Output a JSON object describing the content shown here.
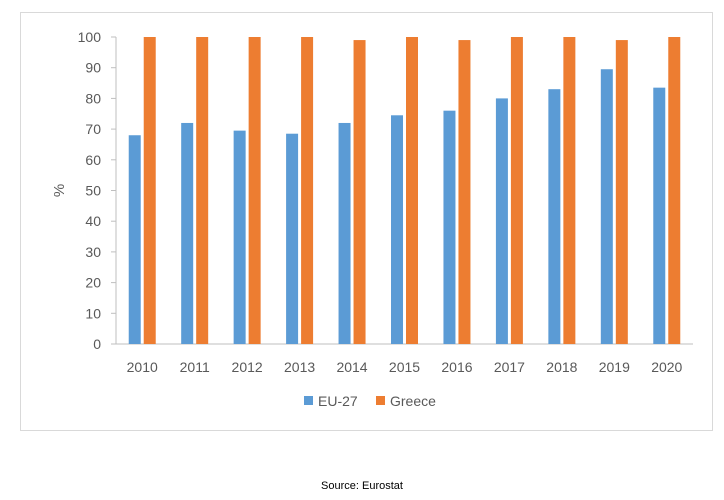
{
  "chart_data": {
    "type": "bar",
    "title": "",
    "xlabel": "",
    "ylabel": "%",
    "ylim": [
      0,
      100
    ],
    "yticks": [
      0,
      10,
      20,
      30,
      40,
      50,
      60,
      70,
      80,
      90,
      100
    ],
    "grid": false,
    "legend_position": "bottom",
    "categories": [
      "2010",
      "2011",
      "2012",
      "2013",
      "2014",
      "2015",
      "2016",
      "2017",
      "2018",
      "2019",
      "2020"
    ],
    "series": [
      {
        "name": "EU-27",
        "color": "#5b9bd5",
        "values": [
          68,
          72,
          69.5,
          68.5,
          72,
          74.5,
          76,
          80,
          83,
          89.5,
          83.5
        ]
      },
      {
        "name": "Greece",
        "color": "#ed7d31",
        "values": [
          100,
          100,
          100,
          100,
          99,
          100,
          99,
          100,
          100,
          99,
          100
        ]
      }
    ]
  },
  "source": "Source: Eurostat"
}
